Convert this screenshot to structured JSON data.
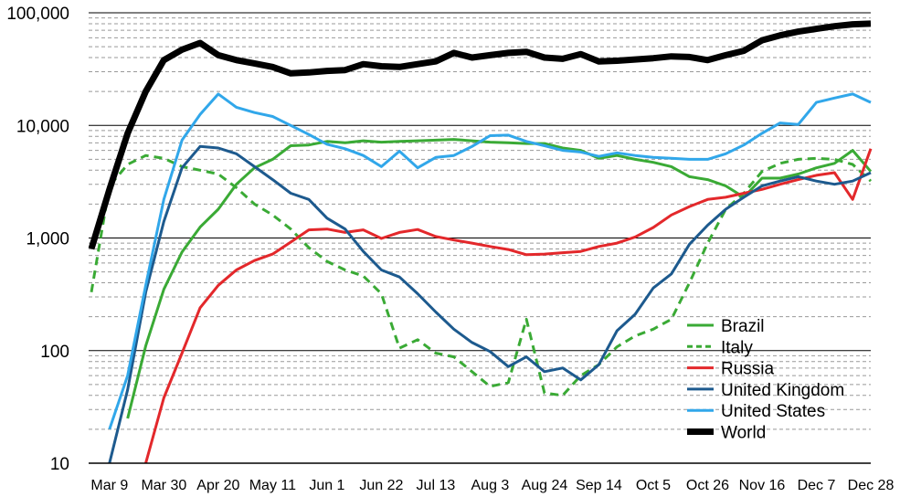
{
  "chart_data": {
    "type": "line",
    "title": "",
    "xlabel": "",
    "ylabel": "",
    "y_scale": "log",
    "ylim": [
      10,
      100000
    ],
    "grid": "horizontal (major solid, minor dashed)",
    "legend_position": "bottom-right",
    "x_tick_labels": [
      "Mar 9",
      "Mar 30",
      "Apr 20",
      "May 11",
      "Jun 1",
      "Jun 22",
      "Jul 13",
      "Aug 3",
      "Aug 24",
      "Sep 14",
      "Oct 5",
      "Oct 26",
      "Nov 16",
      "Dec 7",
      "Dec 28"
    ],
    "y_tick_labels": [
      "10",
      "100",
      "1,000",
      "10,000",
      "100,000"
    ],
    "x": [
      "Mar 2",
      "Mar 9",
      "Mar 16",
      "Mar 23",
      "Mar 30",
      "Apr 6",
      "Apr 13",
      "Apr 20",
      "Apr 27",
      "May 4",
      "May 11",
      "May 18",
      "May 25",
      "Jun 1",
      "Jun 8",
      "Jun 15",
      "Jun 22",
      "Jun 29",
      "Jul 6",
      "Jul 13",
      "Jul 20",
      "Jul 27",
      "Aug 3",
      "Aug 10",
      "Aug 17",
      "Aug 24",
      "Aug 31",
      "Sep 7",
      "Sep 14",
      "Sep 21",
      "Sep 28",
      "Oct 5",
      "Oct 12",
      "Oct 19",
      "Oct 26",
      "Nov 2",
      "Nov 9",
      "Nov 16",
      "Nov 23",
      "Nov 30",
      "Dec 7",
      "Dec 14",
      "Dec 21",
      "Dec 28"
    ],
    "series": [
      {
        "name": "Brazil",
        "color": "#3aaa35",
        "dash": false,
        "width": 3,
        "values": [
          null,
          null,
          25,
          110,
          350,
          750,
          1250,
          1800,
          3000,
          4200,
          5000,
          6600,
          6700,
          7200,
          7000,
          7300,
          7100,
          7200,
          7300,
          7400,
          7500,
          7300,
          7100,
          7000,
          6900,
          6900,
          6300,
          6000,
          5100,
          5400,
          5000,
          4700,
          4300,
          3500,
          3300,
          2900,
          2300,
          3400,
          3400,
          3700,
          4200,
          4600,
          6000,
          3900
        ]
      },
      {
        "name": "Italy",
        "color": "#3aaa35",
        "dash": true,
        "width": 3,
        "values": [
          330,
          2900,
          4500,
          5400,
          5100,
          4300,
          4000,
          3700,
          2800,
          2000,
          1600,
          1200,
          820,
          620,
          520,
          460,
          320,
          105,
          125,
          95,
          88,
          65,
          48,
          52,
          190,
          42,
          40,
          60,
          75,
          108,
          135,
          155,
          190,
          400,
          900,
          1800,
          2500,
          3900,
          4600,
          5000,
          5100,
          5000,
          4500,
          3200
        ]
      },
      {
        "name": "Russia",
        "color": "#e3282b",
        "dash": false,
        "width": 3,
        "values": [
          null,
          null,
          null,
          10,
          38,
          95,
          240,
          380,
          520,
          630,
          720,
          920,
          1180,
          1200,
          1120,
          1180,
          990,
          1120,
          1190,
          1030,
          960,
          900,
          840,
          790,
          710,
          720,
          740,
          760,
          840,
          900,
          1020,
          1240,
          1600,
          1900,
          2200,
          2300,
          2500,
          2700,
          3000,
          3300,
          3600,
          3800,
          2200,
          6200
        ]
      },
      {
        "name": "United Kingdom",
        "color": "#1d5a8e",
        "dash": false,
        "width": 3,
        "values": [
          null,
          10,
          45,
          330,
          1400,
          4200,
          6500,
          6300,
          5600,
          4300,
          3300,
          2500,
          2200,
          1500,
          1200,
          760,
          520,
          450,
          320,
          220,
          155,
          118,
          98,
          72,
          88,
          65,
          70,
          55,
          75,
          150,
          210,
          360,
          480,
          880,
          1300,
          1800,
          2300,
          2900,
          3200,
          3500,
          3200,
          3000,
          3200,
          3800
        ]
      },
      {
        "name": "United States",
        "color": "#31a7ea",
        "dash": false,
        "width": 3,
        "values": [
          null,
          20,
          60,
          380,
          2200,
          7400,
          12500,
          19000,
          14500,
          13000,
          12000,
          10000,
          8300,
          6800,
          6200,
          5400,
          4300,
          5900,
          4200,
          5200,
          5400,
          6500,
          8100,
          8200,
          7200,
          6600,
          6000,
          5800,
          5300,
          5700,
          5400,
          5200,
          5100,
          5000,
          5000,
          5600,
          6700,
          8500,
          10500,
          10200,
          16000,
          17500,
          19000,
          16000
        ]
      },
      {
        "name": "World",
        "color": "#000000",
        "dash": false,
        "width": 7,
        "values": [
          800,
          2700,
          8500,
          20000,
          38000,
          47000,
          54000,
          42000,
          38000,
          35500,
          33000,
          29000,
          29500,
          30500,
          31000,
          35000,
          33500,
          33000,
          35000,
          37000,
          44000,
          40000,
          42000,
          44000,
          45000,
          40000,
          39000,
          43000,
          37000,
          37500,
          38500,
          39500,
          41000,
          40500,
          38000,
          42000,
          46000,
          57000,
          63000,
          68000,
          72000,
          76000,
          79000,
          80000
        ]
      }
    ]
  }
}
